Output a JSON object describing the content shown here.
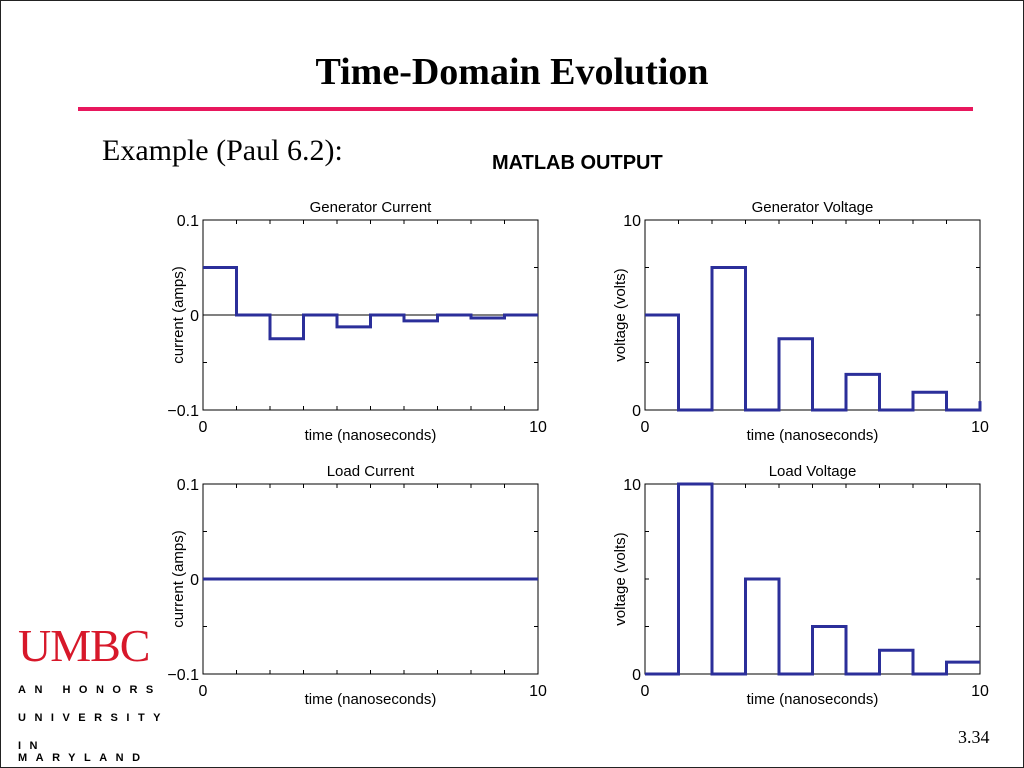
{
  "slide": {
    "title": "Time-Domain Evolution",
    "subtitle": "Example (Paul 6.2):",
    "figure_caption": "MATLAB OUTPUT",
    "page_number": "3.34"
  },
  "logo": {
    "wordmark": "UMBC",
    "line1": "AN HONORS",
    "line2": "UNIVERSITY",
    "line3": "IN MARYLAND"
  },
  "colors": {
    "accent_rule": "#e8175d",
    "logo_red": "#d7182a",
    "trace": "#2b2f9a"
  },
  "chart_data": [
    {
      "type": "line",
      "title": "Generator Current",
      "xlabel": "time (nanoseconds)",
      "ylabel": "current (amps)",
      "xlim": [
        0,
        10
      ],
      "ylim": [
        -0.1,
        0.1
      ],
      "x_tick_labels": [
        "0",
        "10"
      ],
      "y_tick_labels": [
        "0.1",
        "0",
        "−0.1"
      ],
      "zero_line": true,
      "x": [
        0,
        1,
        1,
        2,
        2,
        3,
        3,
        4,
        4,
        5,
        5,
        6,
        6,
        7,
        7,
        8,
        8,
        9,
        9,
        10
      ],
      "y": [
        0.05,
        0.05,
        0,
        0,
        -0.025,
        -0.025,
        0,
        0,
        -0.0125,
        -0.0125,
        0,
        0,
        -0.00625,
        -0.00625,
        0,
        0,
        -0.003125,
        -0.003125,
        0,
        0
      ]
    },
    {
      "type": "line",
      "title": "Generator Voltage",
      "xlabel": "time (nanoseconds)",
      "ylabel": "voltage (volts)",
      "xlim": [
        0,
        10
      ],
      "ylim": [
        0,
        10
      ],
      "x_tick_labels": [
        "0",
        "10"
      ],
      "y_tick_labels": [
        "10",
        "0"
      ],
      "zero_line": false,
      "x": [
        0,
        1,
        1,
        2,
        2,
        3,
        3,
        4,
        4,
        5,
        5,
        6,
        6,
        7,
        7,
        8,
        8,
        9,
        9,
        10,
        10
      ],
      "y": [
        5,
        5,
        0,
        0,
        7.5,
        7.5,
        0,
        0,
        3.75,
        3.75,
        0,
        0,
        1.875,
        1.875,
        0,
        0,
        0.9375,
        0.9375,
        0,
        0,
        0.47
      ]
    },
    {
      "type": "line",
      "title": "Load Current",
      "xlabel": "time (nanoseconds)",
      "ylabel": "current (amps)",
      "xlim": [
        0,
        10
      ],
      "ylim": [
        -0.1,
        0.1
      ],
      "x_tick_labels": [
        "0",
        "10"
      ],
      "y_tick_labels": [
        "0.1",
        "0",
        "−0.1"
      ],
      "zero_line": true,
      "x": [
        0,
        10
      ],
      "y": [
        0,
        0
      ]
    },
    {
      "type": "line",
      "title": "Load Voltage",
      "xlabel": "time (nanoseconds)",
      "ylabel": "voltage (volts)",
      "xlim": [
        0,
        10
      ],
      "ylim": [
        0,
        10
      ],
      "x_tick_labels": [
        "0",
        "10"
      ],
      "y_tick_labels": [
        "10",
        "0"
      ],
      "zero_line": false,
      "x": [
        0,
        1,
        1,
        2,
        2,
        3,
        3,
        4,
        4,
        5,
        5,
        6,
        6,
        7,
        7,
        8,
        8,
        9,
        9,
        10
      ],
      "y": [
        0,
        0,
        10,
        10,
        0,
        0,
        5,
        5,
        0,
        0,
        2.5,
        2.5,
        0,
        0,
        1.25,
        1.25,
        0,
        0,
        0.625,
        0.625
      ]
    }
  ]
}
